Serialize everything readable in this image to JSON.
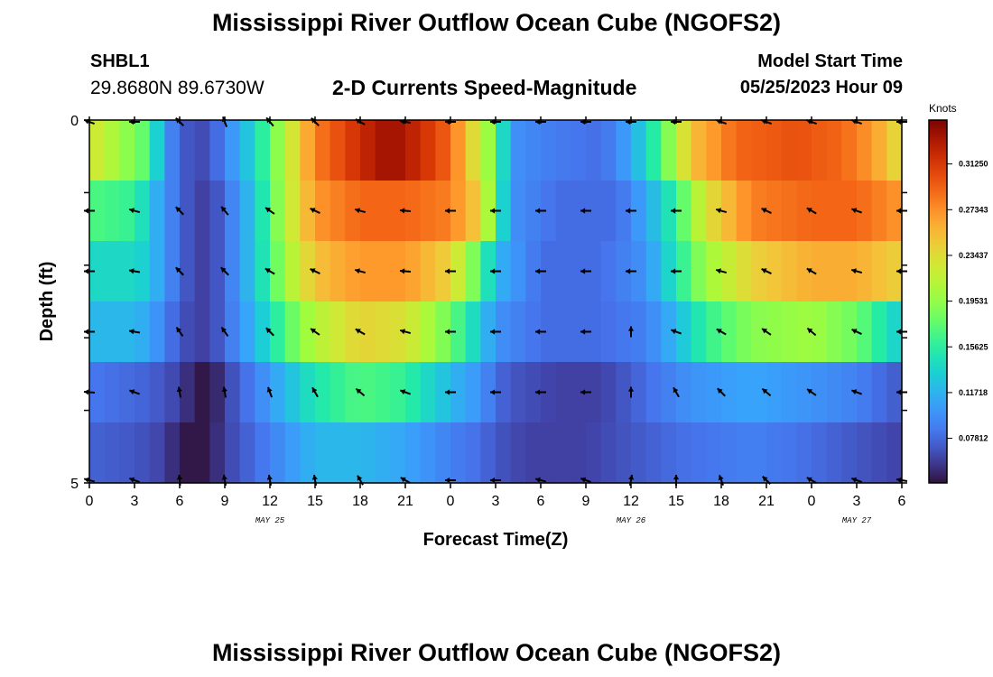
{
  "header": {
    "title": "Mississippi River Outflow Ocean Cube (NGOFS2)",
    "station": "SHBL1",
    "coords": "29.8680N  89.6730W",
    "subtitle": "2-D Currents Speed-Magnitude",
    "model_start_label": "Model Start Time",
    "model_start_value": "05/25/2023 Hour 09"
  },
  "footer": {
    "title": "Mississippi River Outflow Ocean Cube (NGOFS2)"
  },
  "chart_data": {
    "type": "heatmap",
    "title": "2-D Currents Speed-Magnitude",
    "xlabel": "Forecast Time(Z)",
    "ylabel": "Depth (ft)",
    "x_tick_labels": [
      "0",
      "3",
      "6",
      "9",
      "12",
      "15",
      "18",
      "21",
      "0",
      "3",
      "6",
      "9",
      "12",
      "15",
      "18",
      "21",
      "0",
      "3",
      "6"
    ],
    "x_date_labels": [
      {
        "label": "MAY 25",
        "hour": 12
      },
      {
        "label": "MAY 26",
        "hour": 36
      },
      {
        "label": "MAY 27",
        "hour": 51
      }
    ],
    "x_range_hours": [
      0,
      54
    ],
    "y_tick_labels": [
      "0",
      "5"
    ],
    "y_range": [
      0,
      5
    ],
    "colorbar": {
      "label": "Knots",
      "ticks": [
        "0.31250",
        "0.27343",
        "0.23437",
        "0.19531",
        "0.15625",
        "0.11718",
        "0.07812"
      ],
      "tick_values": [
        0.3125,
        0.27343,
        0.23437,
        0.19531,
        0.15625,
        0.11718,
        0.07812
      ],
      "range": [
        0.04,
        0.35
      ]
    },
    "layers": [
      {
        "depth_row": 1,
        "speed_profile": [
          [
            0,
            0.23
          ],
          [
            4,
            0.17
          ],
          [
            5,
            0.1
          ],
          [
            6,
            0.08
          ],
          [
            7,
            0.06
          ],
          [
            8,
            0.07
          ],
          [
            9,
            0.09
          ],
          [
            11,
            0.14
          ],
          [
            13,
            0.21
          ],
          [
            15,
            0.28
          ],
          [
            18,
            0.32
          ],
          [
            20,
            0.34
          ],
          [
            22,
            0.32
          ],
          [
            24,
            0.29
          ],
          [
            27,
            0.18
          ],
          [
            28,
            0.1
          ],
          [
            30,
            0.09
          ],
          [
            34,
            0.08
          ],
          [
            36,
            0.11
          ],
          [
            38,
            0.17
          ],
          [
            40,
            0.25
          ],
          [
            43,
            0.29
          ],
          [
            47,
            0.3
          ],
          [
            50,
            0.29
          ],
          [
            52,
            0.27
          ],
          [
            54,
            0.23
          ]
        ]
      },
      {
        "depth_row": 2,
        "speed_profile": [
          [
            0,
            0.17
          ],
          [
            3,
            0.16
          ],
          [
            4,
            0.13
          ],
          [
            5,
            0.1
          ],
          [
            6,
            0.08
          ],
          [
            7,
            0.06
          ],
          [
            8,
            0.06
          ],
          [
            9,
            0.08
          ],
          [
            11,
            0.13
          ],
          [
            13,
            0.21
          ],
          [
            15,
            0.27
          ],
          [
            18,
            0.29
          ],
          [
            21,
            0.29
          ],
          [
            24,
            0.28
          ],
          [
            26,
            0.24
          ],
          [
            27,
            0.17
          ],
          [
            28,
            0.1
          ],
          [
            31,
            0.08
          ],
          [
            35,
            0.08
          ],
          [
            37,
            0.11
          ],
          [
            39,
            0.16
          ],
          [
            41,
            0.23
          ],
          [
            44,
            0.28
          ],
          [
            48,
            0.29
          ],
          [
            51,
            0.29
          ],
          [
            54,
            0.27
          ]
        ]
      },
      {
        "depth_row": 3,
        "speed_profile": [
          [
            0,
            0.14
          ],
          [
            3,
            0.14
          ],
          [
            4,
            0.13
          ],
          [
            5,
            0.1
          ],
          [
            6,
            0.08
          ],
          [
            7,
            0.06
          ],
          [
            8,
            0.06
          ],
          [
            9,
            0.08
          ],
          [
            11,
            0.13
          ],
          [
            13,
            0.2
          ],
          [
            15,
            0.25
          ],
          [
            18,
            0.27
          ],
          [
            21,
            0.27
          ],
          [
            24,
            0.24
          ],
          [
            26,
            0.17
          ],
          [
            27,
            0.12
          ],
          [
            30,
            0.08
          ],
          [
            34,
            0.08
          ],
          [
            37,
            0.1
          ],
          [
            39,
            0.15
          ],
          [
            41,
            0.2
          ],
          [
            44,
            0.24
          ],
          [
            48,
            0.26
          ],
          [
            51,
            0.26
          ],
          [
            54,
            0.24
          ]
        ]
      },
      {
        "depth_row": 4,
        "speed_profile": [
          [
            0,
            0.12
          ],
          [
            3,
            0.12
          ],
          [
            4,
            0.11
          ],
          [
            5,
            0.09
          ],
          [
            6,
            0.07
          ],
          [
            7,
            0.06
          ],
          [
            8,
            0.06
          ],
          [
            9,
            0.08
          ],
          [
            11,
            0.12
          ],
          [
            13,
            0.17
          ],
          [
            15,
            0.21
          ],
          [
            18,
            0.24
          ],
          [
            21,
            0.23
          ],
          [
            24,
            0.18
          ],
          [
            26,
            0.13
          ],
          [
            27,
            0.1
          ],
          [
            30,
            0.08
          ],
          [
            34,
            0.08
          ],
          [
            37,
            0.09
          ],
          [
            39,
            0.12
          ],
          [
            41,
            0.16
          ],
          [
            44,
            0.19
          ],
          [
            48,
            0.2
          ],
          [
            51,
            0.18
          ],
          [
            54,
            0.13
          ]
        ]
      },
      {
        "depth_row": 5,
        "speed_profile": [
          [
            0,
            0.085
          ],
          [
            4,
            0.075
          ],
          [
            6,
            0.06
          ],
          [
            7,
            0.045
          ],
          [
            8,
            0.04
          ],
          [
            8.5,
            0.05
          ],
          [
            9,
            0.06
          ],
          [
            11,
            0.09
          ],
          [
            13,
            0.12
          ],
          [
            15,
            0.15
          ],
          [
            18,
            0.17
          ],
          [
            21,
            0.16
          ],
          [
            24,
            0.12
          ],
          [
            26,
            0.1
          ],
          [
            27,
            0.08
          ],
          [
            28,
            0.07
          ],
          [
            31,
            0.06
          ],
          [
            34,
            0.06
          ],
          [
            37,
            0.08
          ],
          [
            40,
            0.1
          ],
          [
            44,
            0.11
          ],
          [
            48,
            0.1
          ],
          [
            51,
            0.09
          ],
          [
            54,
            0.07
          ]
        ]
      },
      {
        "depth_row": 6,
        "speed_profile": [
          [
            0,
            0.075
          ],
          [
            3,
            0.07
          ],
          [
            5,
            0.06
          ],
          [
            6,
            0.045
          ],
          [
            7,
            0.04
          ],
          [
            8,
            0.045
          ],
          [
            9,
            0.06
          ],
          [
            11,
            0.08
          ],
          [
            13,
            0.1
          ],
          [
            15,
            0.12
          ],
          [
            18,
            0.12
          ],
          [
            21,
            0.11
          ],
          [
            24,
            0.09
          ],
          [
            26,
            0.08
          ],
          [
            27,
            0.07
          ],
          [
            29,
            0.06
          ],
          [
            33,
            0.06
          ],
          [
            36,
            0.07
          ],
          [
            39,
            0.08
          ],
          [
            44,
            0.09
          ],
          [
            48,
            0.08
          ],
          [
            51,
            0.07
          ],
          [
            54,
            0.06
          ]
        ]
      }
    ],
    "vector_rows": [
      {
        "depth_row": 1,
        "angles_deg": [
          160,
          180,
          135,
          110,
          130,
          135,
          150,
          170,
          180,
          180,
          180,
          180,
          180,
          180,
          160,
          160,
          160,
          160,
          180
        ]
      },
      {
        "depth_row": 2,
        "angles_deg": [
          180,
          165,
          135,
          130,
          145,
          155,
          165,
          175,
          180,
          180,
          180,
          180,
          180,
          180,
          165,
          155,
          150,
          160,
          180
        ]
      },
      {
        "depth_row": 3,
        "angles_deg": [
          180,
          170,
          135,
          135,
          150,
          155,
          165,
          175,
          180,
          180,
          180,
          180,
          180,
          180,
          165,
          155,
          150,
          165,
          180
        ]
      },
      {
        "depth_row": 4,
        "angles_deg": [
          180,
          170,
          125,
          125,
          135,
          145,
          150,
          165,
          180,
          180,
          180,
          180,
          90,
          160,
          150,
          145,
          140,
          155,
          180
        ]
      },
      {
        "depth_row": 5,
        "angles_deg": [
          175,
          160,
          100,
          100,
          110,
          120,
          140,
          160,
          180,
          180,
          180,
          180,
          90,
          120,
          135,
          140,
          145,
          160,
          180
        ]
      },
      {
        "depth_row": 6,
        "angles_deg": [
          165,
          160,
          95,
          100,
          100,
          100,
          120,
          150,
          180,
          180,
          165,
          160,
          80,
          90,
          110,
          135,
          150,
          160,
          170
        ]
      }
    ]
  }
}
